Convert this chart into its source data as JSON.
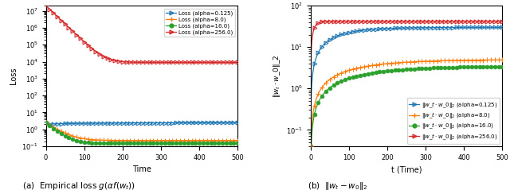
{
  "colors": [
    "#1f77b4",
    "#ff7f0e",
    "#2ca02c",
    "#d62728"
  ],
  "xlabel_a": "Time",
  "xlabel_b": "t (Time)",
  "ylabel_a": "Loss",
  "ylabel_b": "$||w_t\\cdot w\\_0||\\_2$",
  "legend_labels_a": [
    "Loss (alpha=0.125)",
    "Loss (alpha=8.0)",
    "Loss (alpha=16.0)",
    "Loss (alpha=256.0)"
  ],
  "legend_labels_b": [
    "||w_t - w_0||_2 (alpha=0.125)",
    "||w_t - w_0||_2 (alpha=8.0)",
    "||w_t - w_0||_2 (alpha=16.0)",
    "||w_t - w_0||_2 (alpha=256.0)"
  ],
  "caption_a": "(a)  Empirical loss $g(\\alpha f(w_t))$",
  "caption_b": "(b)  $||w_t - w_0||_2$",
  "T": 500,
  "marker_every": 10,
  "loss_0125_init": 2.5,
  "loss_0125_final": 2.0,
  "loss_8_init": 2.5,
  "loss_8_final": 0.22,
  "loss_16_init": 2.5,
  "loss_16_final": 0.15,
  "loss_256_init": 20000000.0,
  "loss_256_final": 9000.0,
  "dist_0125_final": 30.0,
  "dist_8_final": 5.0,
  "dist_16_final": 3.5,
  "dist_256_final": 42.0,
  "dist_init": 0.04
}
